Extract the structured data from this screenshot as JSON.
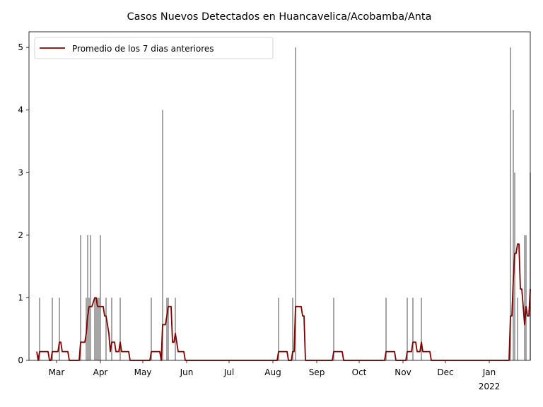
{
  "chart_data": {
    "type": "bar-line",
    "title": "Casos Nuevos Detectados en Huancavelica/Acobamba/Anta",
    "xlim": [
      39.5,
      394
    ],
    "xticks": [
      {
        "value": 59,
        "label": "Mar"
      },
      {
        "value": 90,
        "label": "Apr"
      },
      {
        "value": 120,
        "label": "May"
      },
      {
        "value": 151,
        "label": "Jun"
      },
      {
        "value": 181,
        "label": "Jul"
      },
      {
        "value": 212,
        "label": "Aug"
      },
      {
        "value": 243,
        "label": "Sep"
      },
      {
        "value": 273,
        "label": "Oct"
      },
      {
        "value": 304,
        "label": "Nov"
      },
      {
        "value": 334,
        "label": "Dec"
      },
      {
        "value": 365,
        "label": "Jan\n2022"
      }
    ],
    "ylim": [
      0,
      5.25
    ],
    "yticks": [
      0,
      1,
      2,
      3,
      4,
      5
    ],
    "legend_position": "upper left",
    "bars": {
      "color": "#808080",
      "x": [
        47,
        56,
        61,
        76,
        80,
        81,
        82,
        83,
        86,
        87,
        88,
        89,
        90,
        94,
        98,
        104,
        126,
        134,
        137,
        138,
        143,
        216,
        226,
        228,
        255,
        292,
        307,
        311,
        317,
        380,
        382,
        383,
        385,
        390,
        391,
        394
      ],
      "values": [
        1,
        1,
        1,
        2,
        1,
        2,
        1,
        2,
        1,
        1,
        1,
        1,
        2,
        1,
        1,
        1,
        1,
        4,
        1,
        1,
        1,
        1,
        1,
        5,
        1,
        1,
        1,
        1,
        1,
        5,
        4,
        3,
        1,
        2,
        2,
        3
      ]
    },
    "series": [
      {
        "name": "Promedio de los 7 dias anteriores",
        "color": "#800000",
        "x": [
          45,
          46,
          47,
          53,
          54,
          55,
          56,
          60,
          61,
          62,
          63,
          67,
          68,
          75,
          76,
          79,
          80,
          81,
          82,
          84,
          86,
          87,
          88,
          92,
          93,
          94,
          96,
          97,
          98,
          100,
          101,
          103,
          104,
          105,
          110,
          111,
          125,
          126,
          132,
          133,
          134,
          136,
          137,
          138,
          140,
          141,
          142,
          143,
          144,
          145,
          149,
          150,
          215,
          216,
          222,
          223,
          225,
          226,
          227,
          228,
          232,
          233,
          234,
          235,
          254,
          255,
          261,
          262,
          291,
          292,
          298,
          299,
          306,
          307,
          310,
          311,
          313,
          314,
          316,
          317,
          318,
          323,
          324,
          379,
          380,
          381,
          382,
          383,
          384,
          385,
          386,
          387,
          388,
          389,
          390,
          391,
          392,
          393,
          394
        ],
        "values": [
          0.14,
          0,
          0.14,
          0.14,
          0,
          0,
          0.14,
          0.14,
          0.29,
          0.29,
          0.14,
          0.14,
          0,
          0,
          0.29,
          0.29,
          0.43,
          0.71,
          0.86,
          0.86,
          1.0,
          1.0,
          0.86,
          0.86,
          0.71,
          0.71,
          0.43,
          0.14,
          0.29,
          0.29,
          0.14,
          0.14,
          0.29,
          0.14,
          0.14,
          0,
          0,
          0.14,
          0.14,
          0,
          0.57,
          0.57,
          0.71,
          0.86,
          0.86,
          0.29,
          0.29,
          0.43,
          0.29,
          0.14,
          0.14,
          0,
          0,
          0.14,
          0.14,
          0,
          0,
          0.14,
          0.14,
          0.86,
          0.86,
          0.71,
          0.71,
          0,
          0,
          0.14,
          0.14,
          0,
          0,
          0.14,
          0.14,
          0,
          0,
          0.14,
          0.14,
          0.29,
          0.29,
          0.14,
          0.14,
          0.29,
          0.14,
          0.14,
          0,
          0,
          0.71,
          0.71,
          1.29,
          1.71,
          1.71,
          1.86,
          1.86,
          1.14,
          1.14,
          0.86,
          0.57,
          0.86,
          0.71,
          0.71,
          1.14
        ]
      }
    ]
  }
}
